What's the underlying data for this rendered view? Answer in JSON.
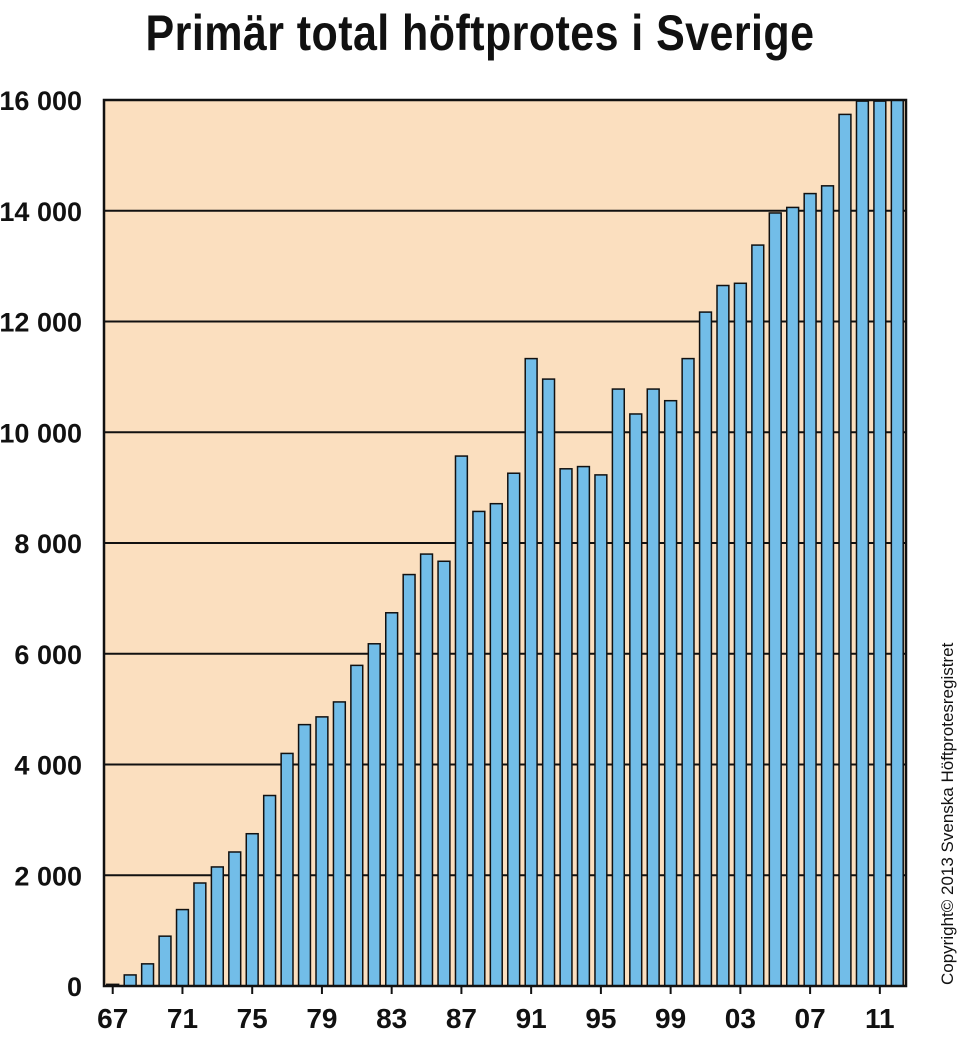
{
  "chart_data": {
    "type": "bar",
    "title": "Primär total höftprotes i Sverige",
    "xlabel": "",
    "ylabel": "",
    "ylim": [
      0,
      16000
    ],
    "yticks": [
      0,
      2000,
      4000,
      6000,
      8000,
      10000,
      12000,
      14000,
      16000
    ],
    "ytick_labels": [
      "0",
      "2 000",
      "4 000",
      "6 000",
      "8 000",
      "10 000",
      "12 000",
      "14 000",
      "16 000"
    ],
    "xtick_labels": [
      {
        "label": "67",
        "year": 1967
      },
      {
        "label": "71",
        "year": 1971
      },
      {
        "label": "75",
        "year": 1975
      },
      {
        "label": "79",
        "year": 1979
      },
      {
        "label": "83",
        "year": 1983
      },
      {
        "label": "87",
        "year": 1987
      },
      {
        "label": "91",
        "year": 1991
      },
      {
        "label": "95",
        "year": 1995
      },
      {
        "label": "99",
        "year": 1999
      },
      {
        "label": "03",
        "year": 2003
      },
      {
        "label": "07",
        "year": 2007
      },
      {
        "label": "11",
        "year": 2011
      }
    ],
    "categories": [
      1967,
      1968,
      1969,
      1970,
      1971,
      1972,
      1973,
      1974,
      1975,
      1976,
      1977,
      1978,
      1979,
      1980,
      1981,
      1982,
      1983,
      1984,
      1985,
      1986,
      1987,
      1988,
      1989,
      1990,
      1991,
      1992,
      1993,
      1994,
      1995,
      1996,
      1997,
      1998,
      1999,
      2000,
      2001,
      2002,
      2003,
      2004,
      2005,
      2006,
      2007,
      2008,
      2009,
      2010,
      2011,
      2012
    ],
    "values": [
      30,
      200,
      400,
      900,
      1380,
      1860,
      2150,
      2420,
      2750,
      3440,
      4200,
      4720,
      4860,
      5130,
      5790,
      6180,
      6740,
      7430,
      7800,
      7670,
      9570,
      8570,
      8710,
      9260,
      11330,
      10960,
      9340,
      9380,
      9230,
      10780,
      10330,
      10780,
      10570,
      11330,
      12170,
      12650,
      12690,
      13380,
      13960,
      14060,
      14310,
      14450,
      15740,
      15980,
      15980,
      16000
    ],
    "grid": true,
    "plot_background": "#fbdfbf",
    "bar_color": "#72bde8",
    "bar_edge": "#111111",
    "annotation": "Copyright© 2013 Svenska Höftprotesregistret"
  }
}
